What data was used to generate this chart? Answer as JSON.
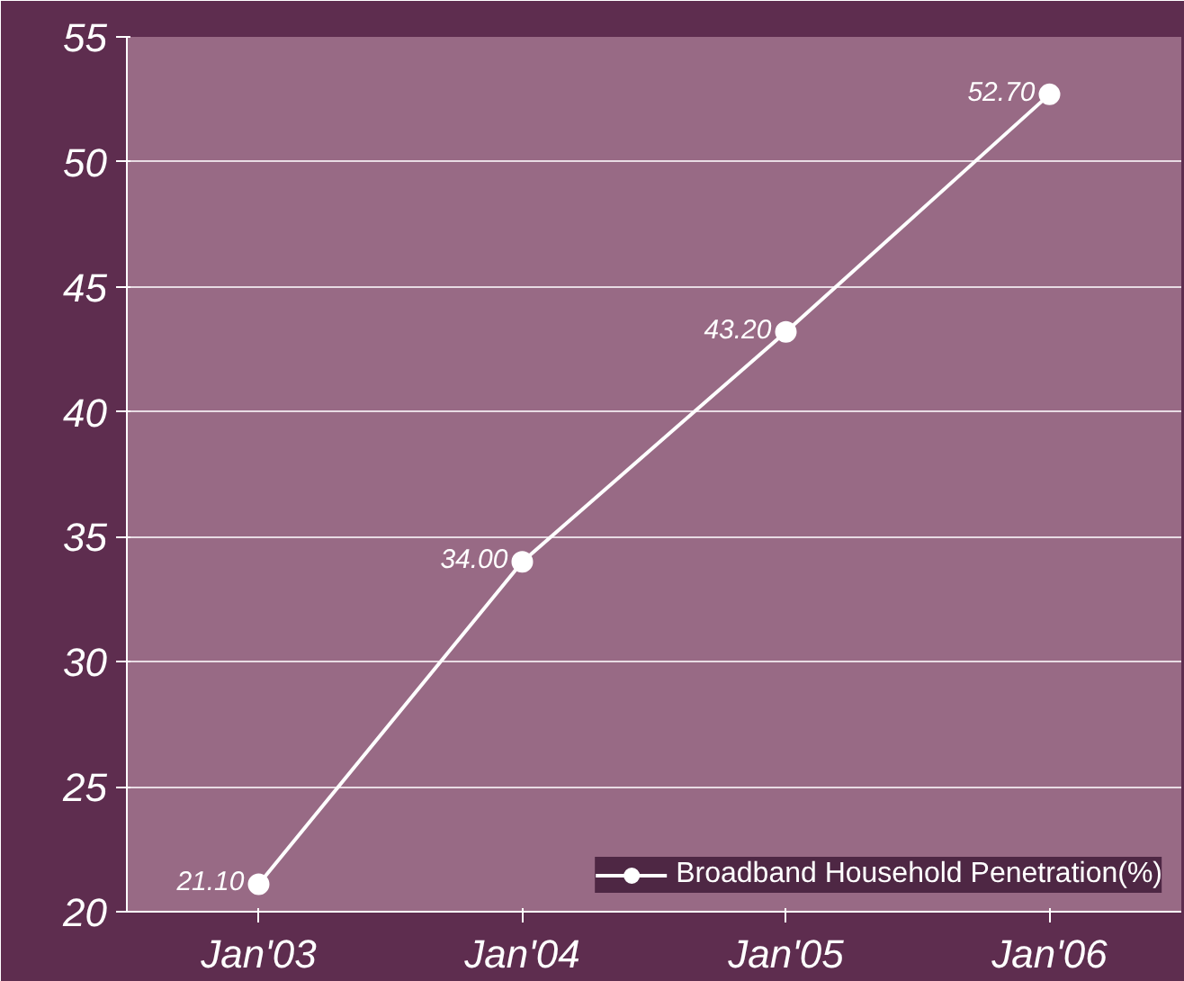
{
  "chart_data": {
    "type": "line",
    "categories": [
      "Jan'03",
      "Jan'04",
      "Jan'05",
      "Jan'06"
    ],
    "series": [
      {
        "name": "Broadband Household Penetration(%)",
        "color": "#ffffff",
        "values": [
          21.1,
          34.0,
          43.2,
          52.7
        ],
        "value_labels": [
          "21.10",
          "34.00",
          "43.20",
          "52.70"
        ]
      }
    ],
    "ylim": [
      20,
      55
    ],
    "yticks": [
      20,
      25,
      30,
      35,
      40,
      45,
      50,
      55
    ],
    "grid": "y",
    "legend": "bottom right",
    "marker": "circle",
    "line_style": "solid"
  }
}
